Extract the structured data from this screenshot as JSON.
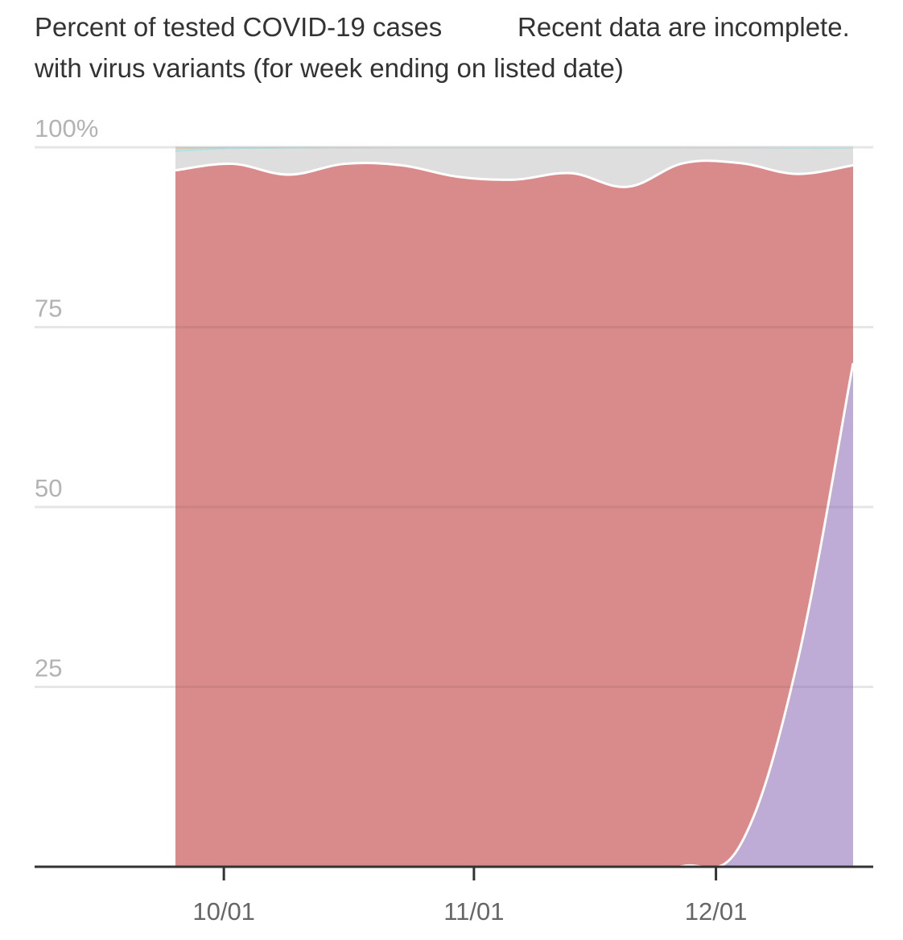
{
  "header": {
    "title_line1": "Percent of tested COVID-19 cases",
    "title_line2": "with virus variants (for week ending on listed date)",
    "note": "Recent data are incomplete."
  },
  "chart_data": {
    "type": "area",
    "stacked": true,
    "x": [
      "2021-09-25",
      "2021-10-02",
      "2021-10-09",
      "2021-10-16",
      "2021-10-23",
      "2021-10-30",
      "2021-11-06",
      "2021-11-13",
      "2021-11-20",
      "2021-11-27",
      "2021-12-04",
      "2021-12-11",
      "2021-12-18"
    ],
    "x_tick_labels": [
      "10/01",
      "11/01",
      "12/01"
    ],
    "x_tick_dates": [
      "2021-10-01",
      "2021-11-01",
      "2021-12-01"
    ],
    "y_tick_labels": [
      "100%",
      "75",
      "50",
      "25"
    ],
    "y_tick_values": [
      100,
      75,
      50,
      25
    ],
    "ylim": [
      0,
      100
    ],
    "grid": true,
    "series": [
      {
        "values": [
          0,
          0,
          0,
          0,
          0,
          0,
          0,
          0,
          0,
          0.1,
          3,
          28,
          70
        ],
        "color": "#bfacd6"
      },
      {
        "values": [
          96.8,
          97.7,
          96.2,
          97.7,
          97.5,
          95.9,
          95.5,
          96.4,
          94.5,
          97.7,
          94.8,
          68.3,
          27.5
        ],
        "color": "#d98b8c"
      },
      {
        "values": [
          2.5,
          2.0,
          3.6,
          2.2,
          2.4,
          4.0,
          4.4,
          3.5,
          5.4,
          2.1,
          2.1,
          3.5,
          2.3
        ],
        "color": "#dedede"
      },
      {
        "values": [
          0.5,
          0.2,
          0.1,
          0.1,
          0.05,
          0.05,
          0.05,
          0.05,
          0.05,
          0.05,
          0.05,
          0.1,
          0.1
        ],
        "color": "#b9e0e6"
      },
      {
        "values": [
          0.2,
          0.1,
          0.1,
          0,
          0,
          0,
          0,
          0,
          0,
          0,
          0,
          0,
          0
        ],
        "color": "#f2c99a"
      }
    ]
  }
}
